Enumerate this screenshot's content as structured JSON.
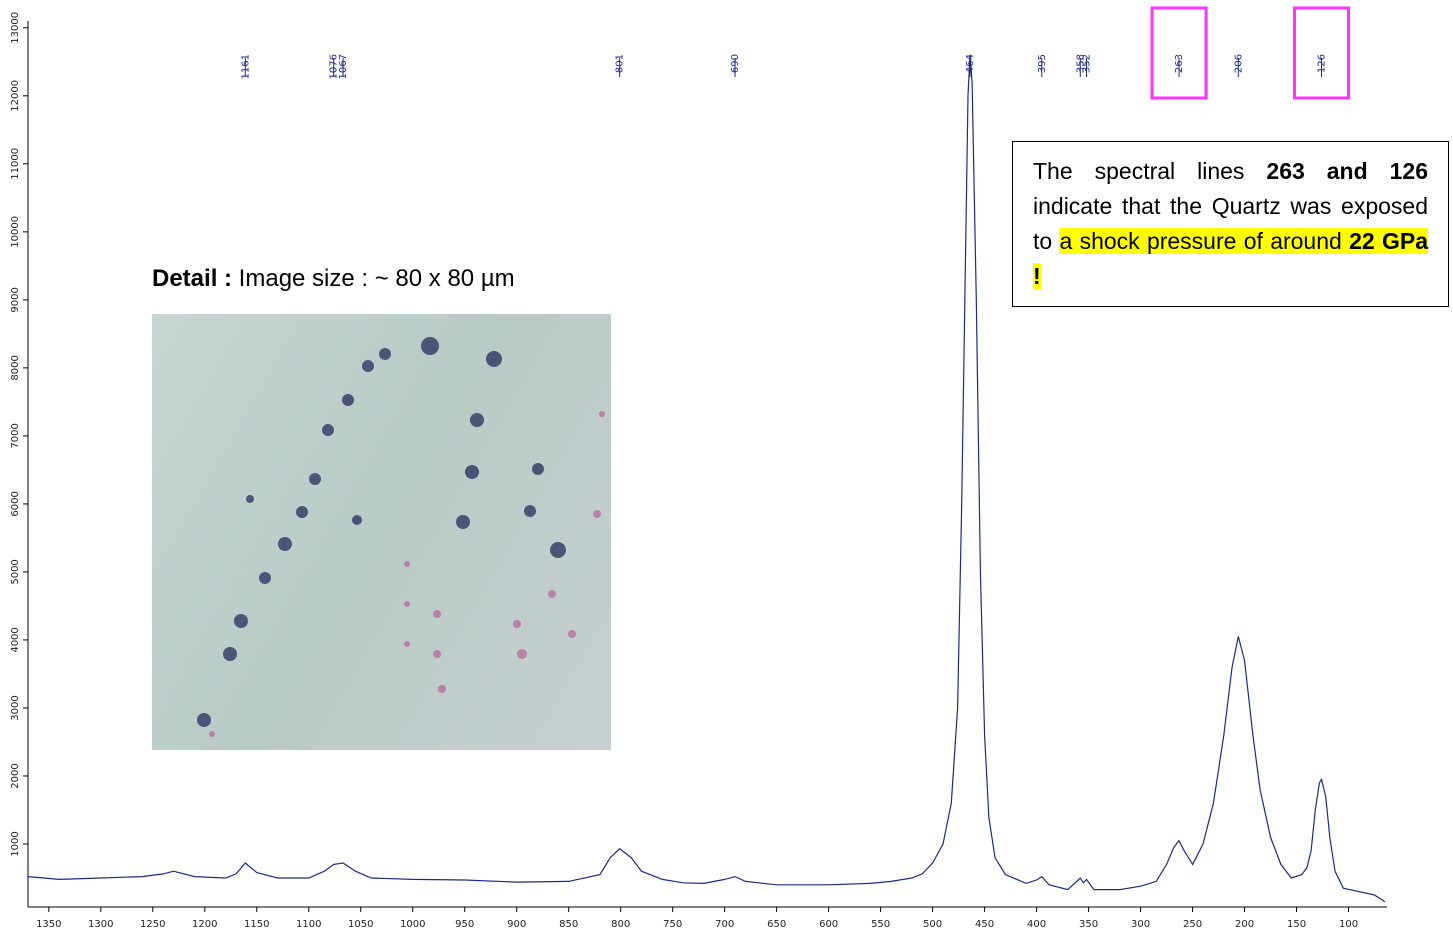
{
  "chart_data": {
    "type": "line",
    "color": "#1c2a8a",
    "x": [
      1370,
      1340,
      1300,
      1260,
      1240,
      1230,
      1210,
      1180,
      1170,
      1161,
      1150,
      1130,
      1100,
      1085,
      1076,
      1067,
      1055,
      1040,
      1000,
      950,
      900,
      850,
      820,
      810,
      801,
      790,
      780,
      760,
      740,
      720,
      700,
      690,
      680,
      650,
      600,
      560,
      540,
      520,
      510,
      500,
      490,
      482,
      476,
      472,
      468,
      466,
      464,
      462,
      458,
      454,
      450,
      446,
      440,
      430,
      410,
      400,
      395,
      388,
      370,
      358,
      355,
      352,
      345,
      320,
      300,
      285,
      275,
      268,
      263,
      258,
      250,
      240,
      230,
      220,
      212,
      206,
      200,
      192,
      185,
      175,
      165,
      155,
      145,
      140,
      136,
      132,
      128,
      126,
      122,
      118,
      113,
      105,
      90,
      75,
      65
    ],
    "values": [
      520,
      480,
      500,
      520,
      560,
      600,
      520,
      500,
      560,
      720,
      580,
      500,
      500,
      600,
      700,
      720,
      600,
      500,
      480,
      470,
      440,
      450,
      550,
      800,
      930,
      800,
      600,
      480,
      430,
      420,
      480,
      520,
      450,
      400,
      400,
      420,
      450,
      500,
      560,
      720,
      1000,
      1600,
      3000,
      6000,
      10000,
      12000,
      12600,
      12200,
      9000,
      5000,
      2600,
      1400,
      800,
      550,
      420,
      470,
      520,
      400,
      330,
      500,
      430,
      480,
      330,
      330,
      380,
      450,
      700,
      950,
      1050,
      900,
      700,
      1000,
      1600,
      2600,
      3600,
      4050,
      3700,
      2600,
      1800,
      1100,
      700,
      500,
      550,
      650,
      900,
      1500,
      1900,
      1950,
      1700,
      1100,
      600,
      350,
      300,
      250,
      150
    ],
    "xlim": [
      1370,
      63
    ],
    "ylim": [
      0,
      13100
    ],
    "xticks": [
      1350,
      1300,
      1250,
      1200,
      1150,
      1100,
      1050,
      1000,
      950,
      900,
      850,
      800,
      750,
      700,
      650,
      600,
      550,
      500,
      450,
      400,
      350,
      300,
      250,
      200,
      150,
      100
    ],
    "yticks": [
      1000,
      2000,
      3000,
      4000,
      5000,
      6000,
      7000,
      8000,
      9000,
      10000,
      11000,
      12000,
      13000
    ],
    "peaks": [
      1161,
      1076,
      1067,
      801,
      690,
      464,
      395,
      358,
      352,
      263,
      206,
      126
    ],
    "highlighted_peaks": [
      263,
      126
    ],
    "highlight_color": "#ff33ff",
    "annotation": [
      "The spectral lines ",
      "263 and 126",
      " indicate that the Quartz was exposed to ",
      "a shock pressure of around ",
      "22  GPa !"
    ],
    "detail_label": "Detail :",
    "detail_caption": " Image size :  ~ 80 x 80 µm"
  }
}
